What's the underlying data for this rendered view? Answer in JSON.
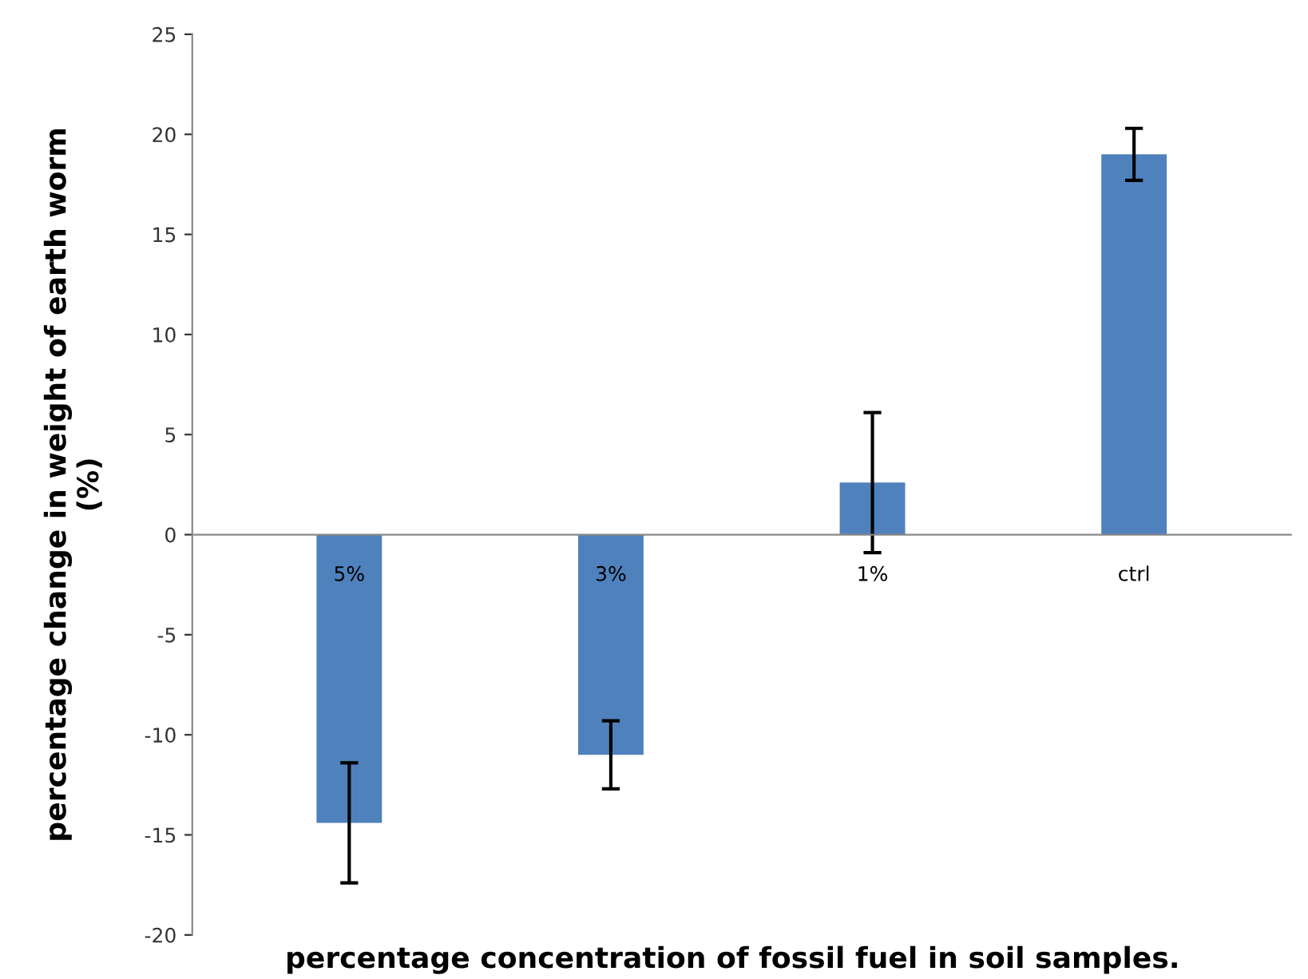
{
  "chart_data": {
    "type": "bar",
    "xlabel": "percentage concentration of fossil fuel in soil samples.",
    "ylabel": "percentage change in weight of earth worm\n(%)",
    "categories": [
      "5%",
      "3%",
      "1%",
      "ctrl"
    ],
    "values": [
      -14.4,
      -11.0,
      2.6,
      19.0
    ],
    "errors": [
      3.0,
      1.7,
      3.5,
      1.3
    ],
    "color": "#4f81bd",
    "ylim": [
      -20,
      25
    ],
    "yticks": [
      -20,
      -15,
      -10,
      -5,
      0,
      5,
      10,
      15,
      20,
      25
    ],
    "grid": false,
    "legend": false
  }
}
